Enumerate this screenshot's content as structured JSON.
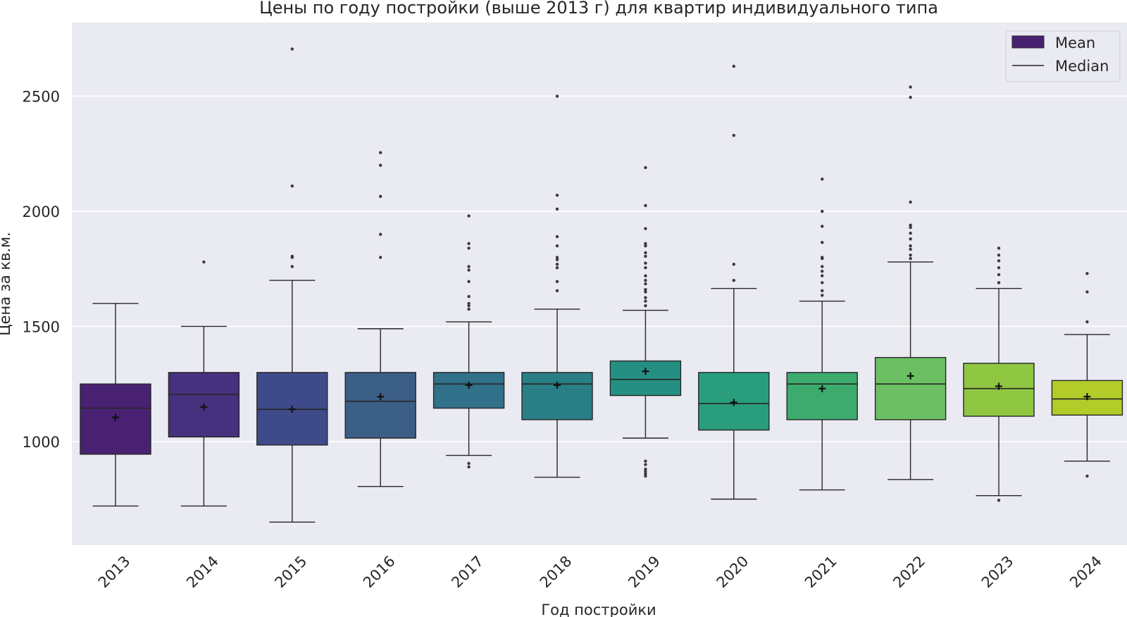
{
  "chart_data": {
    "type": "box",
    "title": "Цены по году постройки (выше 2013 г) для квартир индивидуального типа",
    "xlabel": "Год постройки",
    "ylabel": "Цена за кв.м.",
    "ylim": [
      550,
      2820
    ],
    "yticks": [
      1000,
      1500,
      2000,
      2500
    ],
    "grid": true,
    "legend": {
      "placement": "top-right",
      "items": [
        {
          "label": "Mean",
          "kind": "box"
        },
        {
          "label": "Median",
          "kind": "line"
        }
      ]
    },
    "categories": [
      "2013",
      "2014",
      "2015",
      "2016",
      "2017",
      "2018",
      "2019",
      "2020",
      "2021",
      "2022",
      "2023",
      "2024"
    ],
    "colors": [
      "#482173",
      "#433e85",
      "#38598c",
      "#2d708e",
      "#25858e",
      "#1e9b8a",
      "#2ab07f",
      "#51c56a",
      "#85d54a",
      "#c2df23",
      "#2ab07f",
      "#bddf26"
    ],
    "boxes": [
      {
        "year": "2013",
        "color": "#482173",
        "q1": 945,
        "median": 1145,
        "q3": 1250,
        "whisker_low": 720,
        "whisker_high": 1600,
        "mean": 1105,
        "outliers": []
      },
      {
        "year": "2014",
        "color": "#46317e",
        "q1": 1020,
        "median": 1205,
        "q3": 1300,
        "whisker_low": 720,
        "whisker_high": 1500,
        "mean": 1150,
        "outliers": [
          1780
        ]
      },
      {
        "year": "2015",
        "color": "#3e4a89",
        "q1": 985,
        "median": 1140,
        "q3": 1300,
        "whisker_low": 650,
        "whisker_high": 1700,
        "mean": 1140,
        "outliers": [
          1760,
          1800,
          1805,
          2110,
          2705
        ]
      },
      {
        "year": "2016",
        "color": "#3b5e86",
        "q1": 1015,
        "median": 1175,
        "q3": 1300,
        "whisker_low": 805,
        "whisker_high": 1490,
        "mean": 1195,
        "outliers": [
          1800,
          1900,
          2065,
          2200,
          2255
        ]
      },
      {
        "year": "2017",
        "color": "#32718a",
        "q1": 1145,
        "median": 1250,
        "q3": 1300,
        "whisker_low": 940,
        "whisker_high": 1520,
        "mean": 1245,
        "outliers": [
          890,
          905,
          1575,
          1590,
          1600,
          1630,
          1695,
          1745,
          1760,
          1840,
          1860,
          1980
        ]
      },
      {
        "year": "2018",
        "color": "#2a7e86",
        "q1": 1095,
        "median": 1250,
        "q3": 1300,
        "whisker_low": 845,
        "whisker_high": 1575,
        "mean": 1245,
        "outliers": [
          1655,
          1695,
          1755,
          1770,
          1790,
          1800,
          1850,
          1890,
          2010,
          2070,
          2500
        ]
      },
      {
        "year": "2019",
        "color": "#259082",
        "q1": 1200,
        "median": 1270,
        "q3": 1350,
        "whisker_low": 1015,
        "whisker_high": 1570,
        "mean": 1305,
        "outliers": [
          850,
          860,
          870,
          880,
          900,
          915,
          1590,
          1610,
          1625,
          1650,
          1660,
          1685,
          1700,
          1720,
          1755,
          1775,
          1805,
          1820,
          1850,
          1860,
          1925,
          2025,
          2190
        ]
      },
      {
        "year": "2020",
        "color": "#2a9d7c",
        "q1": 1050,
        "median": 1165,
        "q3": 1300,
        "whisker_low": 750,
        "whisker_high": 1665,
        "mean": 1170,
        "outliers": [
          1700,
          1770,
          2330,
          2630
        ]
      },
      {
        "year": "2021",
        "color": "#3dab6e",
        "q1": 1095,
        "median": 1250,
        "q3": 1300,
        "whisker_low": 790,
        "whisker_high": 1610,
        "mean": 1230,
        "outliers": [
          1635,
          1655,
          1690,
          1720,
          1740,
          1760,
          1795,
          1800,
          1865,
          1935,
          2000,
          2140
        ]
      },
      {
        "year": "2022",
        "color": "#6cbf63",
        "q1": 1095,
        "median": 1250,
        "q3": 1365,
        "whisker_low": 835,
        "whisker_high": 1780,
        "mean": 1285,
        "outliers": [
          1795,
          1810,
          1835,
          1850,
          1880,
          1905,
          1930,
          1940,
          2040,
          2495,
          2540
        ]
      },
      {
        "year": "2023",
        "color": "#8fc743",
        "q1": 1110,
        "median": 1230,
        "q3": 1340,
        "whisker_low": 765,
        "whisker_high": 1665,
        "mean": 1240,
        "outliers": [
          745,
          1690,
          1725,
          1755,
          1785,
          1810,
          1840
        ]
      },
      {
        "year": "2024",
        "color": "#b3cc2a",
        "q1": 1115,
        "median": 1185,
        "q3": 1265,
        "whisker_low": 915,
        "whisker_high": 1465,
        "mean": 1195,
        "outliers": [
          850,
          1520,
          1650,
          1730
        ]
      }
    ]
  }
}
